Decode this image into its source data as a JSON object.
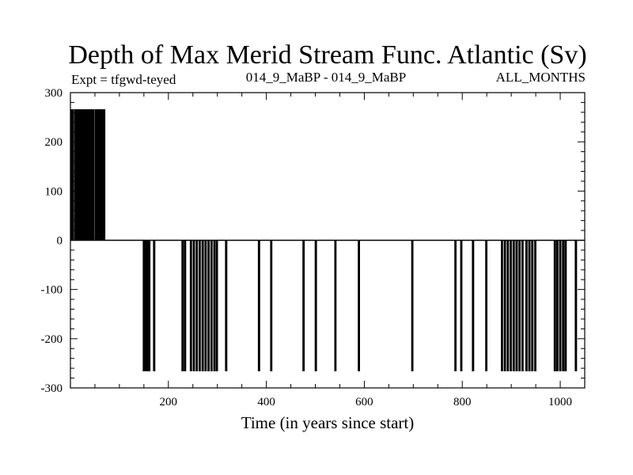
{
  "chart_data": {
    "type": "line",
    "title": "Depth of Max Merid Stream Func. Atlantic (Sv)",
    "subtitle_left": "Expt = tfgwd-teyed",
    "subtitle_center": "014_9_MaBP - 014_9_MaBP",
    "subtitle_right": "ALL_MONTHS",
    "xlabel": "Time (in years since start)",
    "ylabel": "",
    "xlim": [
      0,
      1050
    ],
    "ylim": [
      -300,
      300
    ],
    "xticks": [
      200,
      400,
      600,
      800,
      1000
    ],
    "yticks": [
      300,
      200,
      100,
      0,
      -100,
      -200,
      -300
    ],
    "grid": false,
    "high_value": 265,
    "low_value": -265,
    "baseline": 0,
    "positive_spikes": [
      [
        1,
        3
      ],
      [
        5,
        6
      ],
      [
        9,
        10
      ],
      [
        12,
        14
      ],
      [
        16,
        17
      ],
      [
        19,
        21
      ],
      [
        23,
        24
      ],
      [
        26,
        28
      ],
      [
        30,
        31
      ],
      [
        33,
        35
      ],
      [
        37,
        38
      ],
      [
        40,
        42
      ],
      [
        44,
        45
      ],
      [
        47,
        48
      ],
      [
        51,
        52
      ],
      [
        54,
        56
      ],
      [
        58,
        59
      ],
      [
        61,
        63
      ],
      [
        65,
        66
      ],
      [
        68,
        70
      ]
    ],
    "negative_spikes": [
      [
        149,
        151
      ],
      [
        153,
        155
      ],
      [
        156,
        158
      ],
      [
        160,
        162
      ],
      [
        170,
        172
      ],
      [
        228,
        230
      ],
      [
        233,
        235
      ],
      [
        245,
        247
      ],
      [
        251,
        253
      ],
      [
        257,
        259
      ],
      [
        263,
        265
      ],
      [
        269,
        271
      ],
      [
        275,
        277
      ],
      [
        281,
        283
      ],
      [
        287,
        289
      ],
      [
        293,
        295
      ],
      [
        298,
        300
      ],
      [
        317,
        319
      ],
      [
        384,
        386
      ],
      [
        409,
        411
      ],
      [
        475,
        477
      ],
      [
        500,
        502
      ],
      [
        540,
        542
      ],
      [
        588,
        590
      ],
      [
        697,
        699
      ],
      [
        785,
        787
      ],
      [
        797,
        799
      ],
      [
        821,
        823
      ],
      [
        848,
        850
      ],
      [
        880,
        882
      ],
      [
        886,
        888
      ],
      [
        892,
        894
      ],
      [
        898,
        900
      ],
      [
        904,
        906
      ],
      [
        910,
        912
      ],
      [
        916,
        918
      ],
      [
        922,
        924
      ],
      [
        930,
        932
      ],
      [
        936,
        938
      ],
      [
        942,
        944
      ],
      [
        948,
        950
      ],
      [
        988,
        990
      ],
      [
        993,
        995
      ],
      [
        999,
        1001
      ],
      [
        1005,
        1007
      ],
      [
        1010,
        1012
      ],
      [
        1031,
        1033
      ]
    ]
  }
}
